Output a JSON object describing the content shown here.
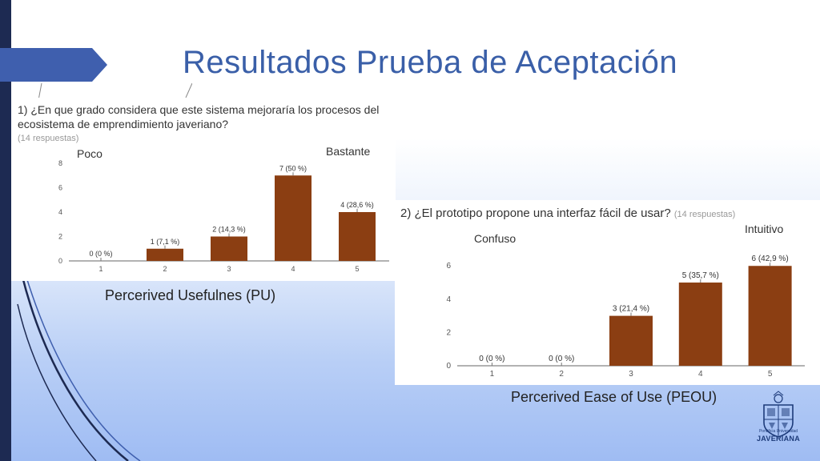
{
  "slide": {
    "title": "Resultados Prueba de Aceptación"
  },
  "logo": {
    "line1": "Pontificia Universidad",
    "line2": "JAVERIANA"
  },
  "chart_data": [
    {
      "type": "bar",
      "question_l1": "1) ¿En que grado considera que este sistema mejoraría los procesos del",
      "question_l2": "ecosistema de emprendimiento javeriano?",
      "responses": "(14 respuestas)",
      "low_label": "Poco",
      "high_label": "Bastante",
      "caption": "Percerived Usefulnes (PU)",
      "categories": [
        "1",
        "2",
        "3",
        "4",
        "5"
      ],
      "values": [
        0,
        1,
        2,
        7,
        4
      ],
      "data_labels": [
        "0 (0 %)",
        "1 (7,1 %)",
        "2 (14,3 %)",
        "7 (50 %)",
        "4 (28,6 %)"
      ],
      "yticks": [
        0,
        2,
        4,
        6,
        8
      ],
      "ylim": [
        0,
        8
      ],
      "bar_color": "#8b3e12"
    },
    {
      "type": "bar",
      "question": "2) ¿El prototipo propone una interfaz fácil de usar?",
      "responses": "(14 respuestas)",
      "low_label": "Confuso",
      "high_label": "Intuitivo",
      "caption": "Percerived Ease of Use (PEOU)",
      "categories": [
        "1",
        "2",
        "3",
        "4",
        "5"
      ],
      "values": [
        0,
        0,
        3,
        5,
        6
      ],
      "data_labels": [
        "0 (0 %)",
        "0 (0 %)",
        "3 (21,4 %)",
        "5 (35,7 %)",
        "6 (42,9 %)"
      ],
      "yticks": [
        0,
        2,
        4,
        6
      ],
      "ylim": [
        0,
        6.3
      ],
      "bar_color": "#8b3e12"
    }
  ]
}
